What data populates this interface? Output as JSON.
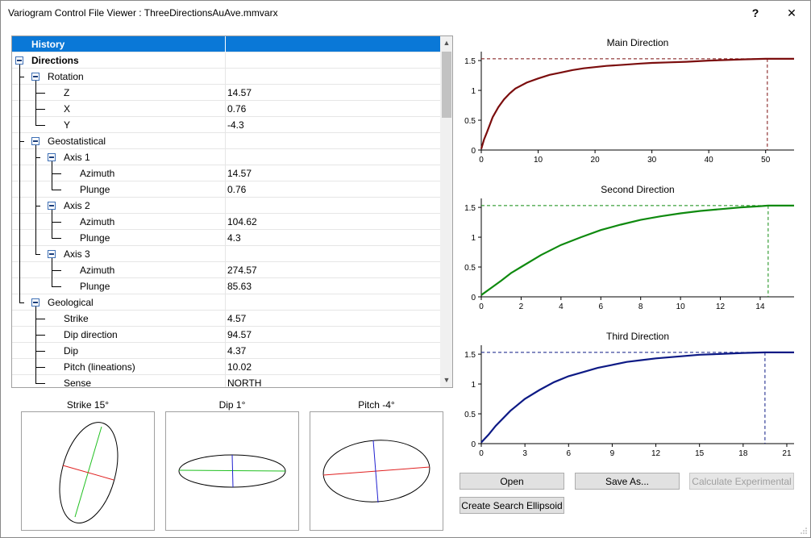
{
  "window": {
    "title": "Variogram Control File Viewer : ThreeDirectionsAuAve.mmvarx",
    "help_glyph": "?",
    "close_glyph": "✕"
  },
  "tree": {
    "header": "History",
    "rows": [
      {
        "label": "Directions",
        "value": "",
        "level": 0,
        "bold": true
      },
      {
        "label": "Rotation",
        "value": "",
        "level": 1
      },
      {
        "label": "Z",
        "value": "14.57",
        "level": 2
      },
      {
        "label": "X",
        "value": "0.76",
        "level": 2
      },
      {
        "label": "Y",
        "value": "-4.3",
        "level": 2
      },
      {
        "label": "Geostatistical",
        "value": "",
        "level": 1
      },
      {
        "label": "Axis 1",
        "value": "",
        "level": 2
      },
      {
        "label": "Azimuth",
        "value": "14.57",
        "level": 3
      },
      {
        "label": "Plunge",
        "value": "0.76",
        "level": 3
      },
      {
        "label": "Axis 2",
        "value": "",
        "level": 2
      },
      {
        "label": "Azimuth",
        "value": "104.62",
        "level": 3
      },
      {
        "label": "Plunge",
        "value": "4.3",
        "level": 3
      },
      {
        "label": "Axis 3",
        "value": "",
        "level": 2
      },
      {
        "label": "Azimuth",
        "value": "274.57",
        "level": 3
      },
      {
        "label": "Plunge",
        "value": "85.63",
        "level": 3
      },
      {
        "label": "Geological",
        "value": "",
        "level": 1
      },
      {
        "label": "Strike",
        "value": "4.57",
        "level": 2
      },
      {
        "label": "Dip direction",
        "value": "94.57",
        "level": 2
      },
      {
        "label": "Dip",
        "value": "4.37",
        "level": 2
      },
      {
        "label": "Pitch (lineations)",
        "value": "10.02",
        "level": 2
      },
      {
        "label": "Sense",
        "value": "NORTH",
        "level": 2
      }
    ]
  },
  "ellipses": [
    {
      "title": "Strike 15°"
    },
    {
      "title": "Dip 1°"
    },
    {
      "title": "Pitch -4°"
    }
  ],
  "colors": {
    "selection": "#0a78d7",
    "main": "#7b0d0d",
    "second": "#0f8a0f",
    "third": "#0d1a85",
    "ellipse_red": "#e02020",
    "ellipse_green": "#20c020",
    "ellipse_blue": "#2020d0"
  },
  "chart_data": [
    {
      "type": "line",
      "title": "Main Direction",
      "xlim": [
        0,
        55
      ],
      "ylim": [
        0,
        1.65
      ],
      "xticks": [
        0,
        10,
        20,
        30,
        40,
        50
      ],
      "yticks": [
        0,
        0.5,
        1,
        1.5
      ],
      "sill": 1.53,
      "range": 50.3,
      "series": [
        {
          "x": [
            0,
            0.5,
            1,
            2,
            3,
            4,
            5,
            6,
            8,
            10,
            12,
            14,
            16,
            18,
            20,
            22,
            25,
            28,
            30,
            33,
            36,
            40,
            43,
            46,
            50,
            55
          ],
          "y": [
            0.02,
            0.18,
            0.3,
            0.55,
            0.72,
            0.85,
            0.95,
            1.03,
            1.13,
            1.2,
            1.26,
            1.3,
            1.34,
            1.37,
            1.39,
            1.41,
            1.43,
            1.45,
            1.46,
            1.47,
            1.48,
            1.5,
            1.51,
            1.52,
            1.53,
            1.53
          ]
        }
      ]
    },
    {
      "type": "line",
      "title": "Second Direction",
      "xlim": [
        0,
        15.7
      ],
      "ylim": [
        0,
        1.65
      ],
      "xticks": [
        0,
        2,
        4,
        6,
        8,
        10,
        12,
        14
      ],
      "yticks": [
        0,
        0.5,
        1,
        1.5
      ],
      "sill": 1.53,
      "range": 14.4,
      "series": [
        {
          "x": [
            0,
            0.5,
            1,
            1.5,
            2,
            3,
            4,
            5,
            6,
            7,
            8,
            9,
            10,
            11,
            12,
            13,
            14,
            14.4,
            15,
            15.7
          ],
          "y": [
            0.03,
            0.15,
            0.27,
            0.4,
            0.5,
            0.7,
            0.87,
            1.0,
            1.12,
            1.21,
            1.29,
            1.35,
            1.4,
            1.44,
            1.47,
            1.5,
            1.52,
            1.53,
            1.53,
            1.53
          ]
        }
      ]
    },
    {
      "type": "line",
      "title": "Third Direction",
      "xlim": [
        0,
        21.5
      ],
      "ylim": [
        0,
        1.65
      ],
      "xticks": [
        0,
        3,
        6,
        9,
        12,
        15,
        18,
        21
      ],
      "yticks": [
        0,
        0.5,
        1,
        1.5
      ],
      "sill": 1.53,
      "range": 19.5,
      "series": [
        {
          "x": [
            0,
            0.5,
            1,
            2,
            3,
            4,
            5,
            6,
            7,
            8,
            9,
            10,
            11,
            12,
            13,
            14,
            15,
            16,
            17,
            18,
            19.5,
            21.5
          ],
          "y": [
            0.02,
            0.15,
            0.3,
            0.55,
            0.75,
            0.9,
            1.03,
            1.13,
            1.2,
            1.27,
            1.32,
            1.37,
            1.4,
            1.43,
            1.45,
            1.47,
            1.49,
            1.5,
            1.51,
            1.52,
            1.53,
            1.53
          ]
        }
      ]
    }
  ],
  "buttons": {
    "open": "Open",
    "save_as": "Save As...",
    "calc_exp": "Calculate Experimental",
    "create_ellipsoid": "Create Search Ellipsoid"
  }
}
